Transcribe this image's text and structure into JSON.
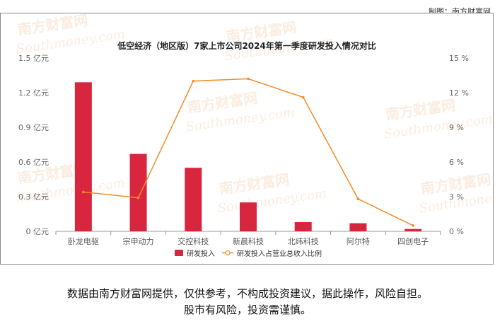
{
  "credit": "制图：南方财富网",
  "watermark": {
    "cn": "南方财富网",
    "en": "Southmoney.com"
  },
  "disclaimer": {
    "line1": "数据由南方财富网提供，仅供参考，不构成投资建议，据此操作，风险自担。",
    "line2": "股市有风险，投资需谨慎。"
  },
  "chart_data": {
    "type": "bar",
    "title": "低空经济（地区版）7家上市公司2024年第一季度研发投入情况对比",
    "categories": [
      "卧龙电驱",
      "宗申动力",
      "交控科技",
      "新晨科技",
      "北纬科技",
      "阿尔特",
      "四创电子"
    ],
    "series": [
      {
        "name": "研发投入",
        "type": "bar",
        "axis": "left",
        "color": "#d7263d",
        "values": [
          1.29,
          0.67,
          0.55,
          0.25,
          0.08,
          0.07,
          0.02
        ]
      },
      {
        "name": "研发投入占营业总收入比例",
        "type": "line",
        "axis": "right",
        "color": "#f28c28",
        "values": [
          3.4,
          2.9,
          13.0,
          13.2,
          11.6,
          2.8,
          0.5
        ]
      }
    ],
    "y_left": {
      "ylim": [
        0,
        1.5
      ],
      "ticks": [
        0,
        0.3,
        0.6,
        0.9,
        1.2,
        1.5
      ],
      "tick_labels": [
        "0 亿元",
        "0.3 亿元",
        "0.6 亿元",
        "0.9 亿元",
        "1.2 亿元",
        "1.5 亿元"
      ]
    },
    "y_right": {
      "ylim": [
        0,
        15
      ],
      "ticks": [
        0,
        3,
        6,
        9,
        12,
        15
      ],
      "tick_labels": [
        "0 %",
        "3 %",
        "6 %",
        "9 %",
        "12 %",
        "15 %"
      ]
    },
    "grid": false,
    "legend_position": "bottom-center"
  }
}
